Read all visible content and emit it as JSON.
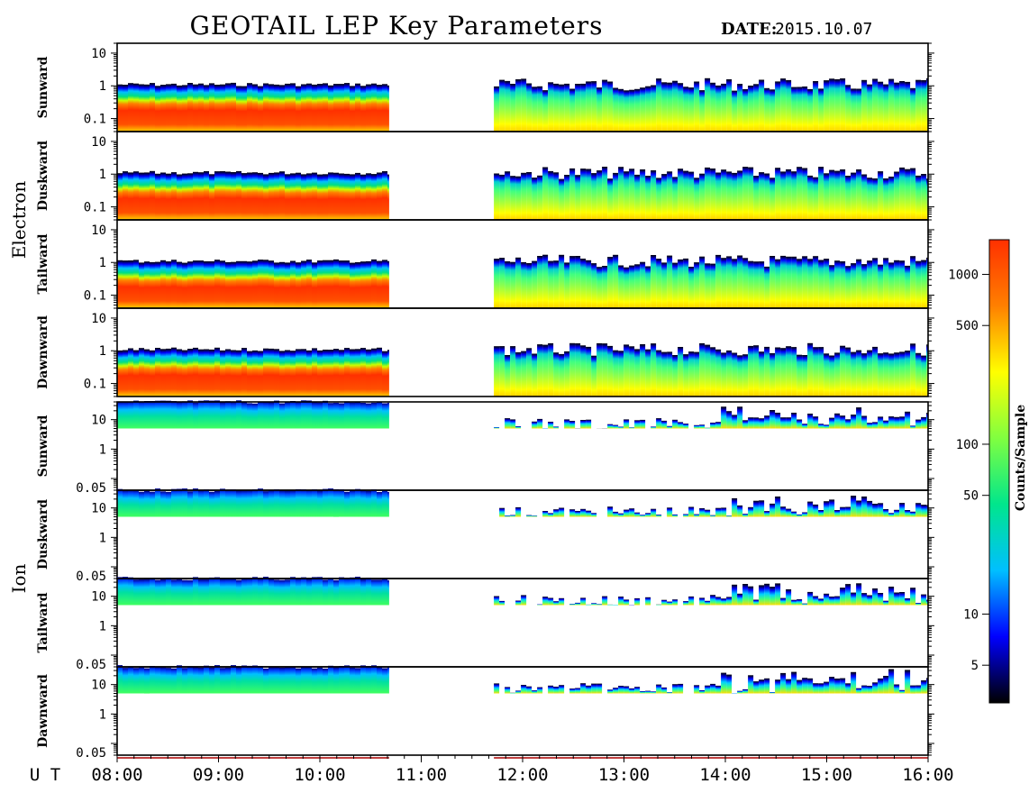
{
  "title": "GEOTAIL LEP Key Parameters",
  "date_label": "DATE:",
  "date_value": "2015.10.07",
  "colors": {
    "colormap": [
      "#000000",
      "#0000ff",
      "#00bfff",
      "#00e68c",
      "#80ff40",
      "#ffff00",
      "#ff8000",
      "#ff3000"
    ],
    "gap_indicator": "#c04040"
  },
  "chart_data": {
    "type": "heatmap",
    "x_axis": {
      "label": "U T",
      "range": [
        "08:00",
        "16:00"
      ],
      "ticks": [
        "08:00",
        "09:00",
        "10:00",
        "11:00",
        "12:00",
        "13:00",
        "14:00",
        "15:00",
        "16:00"
      ]
    },
    "data_intervals": [
      [
        "08:00",
        "10:41"
      ],
      [
        "11:43",
        "16:00"
      ]
    ],
    "colorbar": {
      "label": "Counts/Sample",
      "scale": "log",
      "range": [
        3,
        1600
      ],
      "ticks": [
        5,
        10,
        50,
        100,
        500,
        1000
      ],
      "tick_labels": [
        "5",
        "10",
        "50",
        "100",
        "500",
        "1000"
      ]
    },
    "groups": [
      {
        "name": "Electron",
        "y_ticks": [
          0.1,
          1,
          10
        ],
        "y_tick_labels": [
          "0.1",
          "1",
          "10"
        ],
        "y_range": [
          0.04,
          20
        ],
        "y_scale": "log",
        "panels": [
          {
            "name": "Sunward"
          },
          {
            "name": "Duskward"
          },
          {
            "name": "Tailward"
          },
          {
            "name": "Dawnward"
          }
        ]
      },
      {
        "name": "Ion",
        "y_ticks": [
          0.05,
          1,
          10
        ],
        "y_tick_labels": [
          "0.05",
          "1",
          "10"
        ],
        "y_range": [
          0.04,
          40
        ],
        "y_scale": "log",
        "panels": [
          {
            "name": "Sunward"
          },
          {
            "name": "Duskward"
          },
          {
            "name": "Tailward"
          },
          {
            "name": "Dawnward"
          }
        ]
      }
    ]
  }
}
